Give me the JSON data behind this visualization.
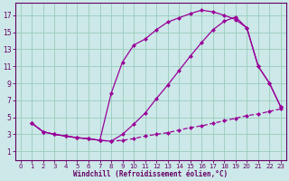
{
  "bg_color": "#cce8e8",
  "line_color": "#990099",
  "grid_color": "#99ccbb",
  "xlabel": "Windchill (Refroidissement éolien,°C)",
  "xlabel_color": "#660066",
  "tick_color": "#660066",
  "xlim": [
    -0.5,
    23.5
  ],
  "ylim": [
    0,
    18.5
  ],
  "xticks": [
    0,
    1,
    2,
    3,
    4,
    5,
    6,
    7,
    8,
    9,
    10,
    11,
    12,
    13,
    14,
    15,
    16,
    17,
    18,
    19,
    20,
    21,
    22,
    23
  ],
  "yticks": [
    1,
    3,
    5,
    7,
    9,
    11,
    13,
    15,
    17
  ],
  "line_top_x": [
    1,
    2,
    3,
    4,
    5,
    6,
    7,
    8,
    9,
    10,
    11,
    12,
    13,
    14,
    15,
    16,
    17,
    18,
    19,
    20,
    21,
    22,
    23
  ],
  "line_top_y": [
    4.3,
    3.3,
    3.0,
    2.8,
    2.6,
    2.5,
    2.3,
    7.8,
    11.5,
    13.5,
    14.2,
    15.3,
    16.2,
    16.7,
    17.2,
    17.6,
    17.4,
    17.0,
    16.5,
    15.5,
    11.0,
    9.0,
    6.2
  ],
  "line_mid_x": [
    1,
    2,
    3,
    4,
    5,
    6,
    7,
    8,
    9,
    10,
    11,
    12,
    13,
    14,
    15,
    16,
    17,
    18,
    19,
    20,
    21,
    22,
    23
  ],
  "line_mid_y": [
    4.3,
    3.3,
    3.0,
    2.8,
    2.6,
    2.5,
    2.3,
    2.2,
    3.0,
    4.2,
    5.5,
    7.2,
    8.8,
    10.5,
    12.2,
    13.8,
    15.3,
    16.3,
    16.8,
    15.5,
    11.0,
    9.0,
    6.2
  ],
  "line_bot_x": [
    1,
    2,
    3,
    4,
    5,
    6,
    7,
    8,
    9,
    10,
    11,
    12,
    13,
    14,
    15,
    16,
    17,
    18,
    19,
    20,
    21,
    22,
    23
  ],
  "line_bot_y": [
    4.3,
    3.3,
    3.0,
    2.8,
    2.6,
    2.5,
    2.3,
    2.2,
    2.3,
    2.5,
    2.8,
    3.0,
    3.2,
    3.5,
    3.8,
    4.0,
    4.3,
    4.6,
    4.9,
    5.2,
    5.4,
    5.7,
    6.0
  ],
  "markersize": 2.5,
  "linewidth": 0.9
}
